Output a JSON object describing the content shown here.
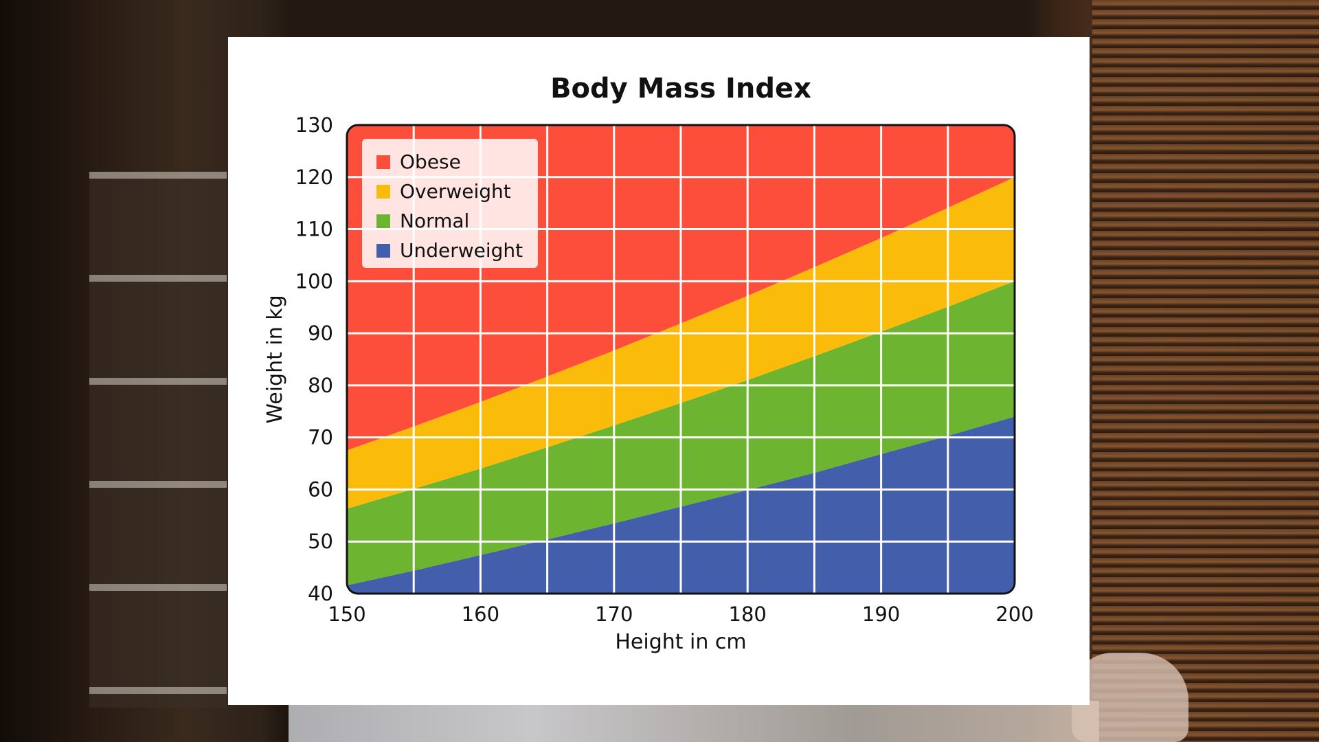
{
  "chart_data": {
    "type": "area",
    "title": "Body Mass Index",
    "xlabel": "Height in cm",
    "ylabel": "Weight in kg",
    "xlim": [
      150,
      200
    ],
    "ylim": [
      40,
      130
    ],
    "x_ticks": [
      "150",
      "160",
      "170",
      "180",
      "190",
      "200"
    ],
    "y_ticks": [
      "40",
      "50",
      "60",
      "70",
      "80",
      "90",
      "100",
      "110",
      "120",
      "130"
    ],
    "grid": true,
    "legend_position": "top-left",
    "x": [
      150,
      155,
      160,
      165,
      170,
      175,
      180,
      185,
      190,
      195,
      200
    ],
    "boundaries": [
      {
        "name": "Underweight",
        "upper": [
          41.6,
          44.4,
          47.4,
          50.4,
          53.5,
          56.7,
          59.9,
          63.2,
          66.8,
          70.3,
          74.0
        ]
      },
      {
        "name": "Normal",
        "upper": [
          56.3,
          60.1,
          64.0,
          68.1,
          72.3,
          76.6,
          81.0,
          85.6,
          90.3,
          95.1,
          100.0
        ]
      },
      {
        "name": "Overweight",
        "upper": [
          67.5,
          72.1,
          76.8,
          81.7,
          86.7,
          91.9,
          97.2,
          102.7,
          108.3,
          114.1,
          120.0
        ]
      },
      {
        "name": "Obese",
        "upper": [
          130,
          130,
          130,
          130,
          130,
          130,
          130,
          130,
          130,
          130,
          130
        ]
      }
    ],
    "legend": [
      "Obese",
      "Overweight",
      "Normal",
      "Underweight"
    ],
    "colors": {
      "Obese": "#fc4e3a",
      "Overweight": "#fbbb0b",
      "Normal": "#6db431",
      "Underweight": "#435fab"
    }
  }
}
